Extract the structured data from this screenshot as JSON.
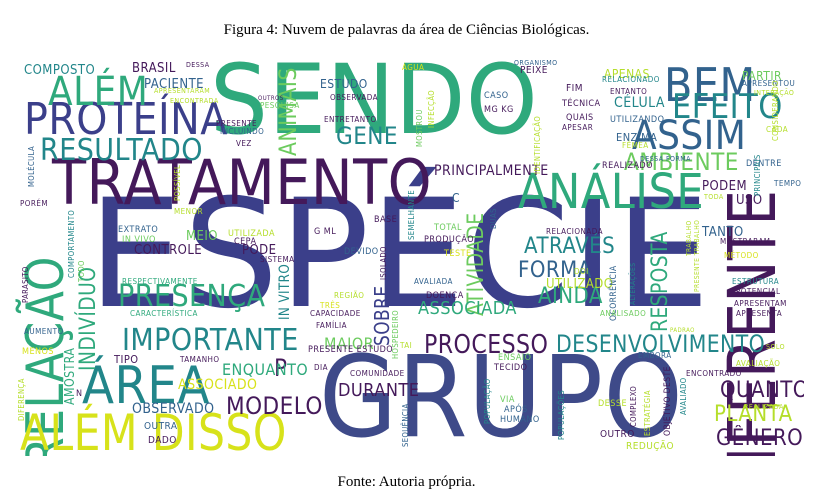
{
  "figure": {
    "caption": "Figura 4: Nuvem de palavras da área de Ciências Biológicas.",
    "source": "Fonte: Autoria própria."
  },
  "colors": {
    "dark_purple": "#44195a",
    "indigo": "#3b3f8a",
    "blue": "#32628d",
    "teal": "#22868a",
    "green": "#2fa97c",
    "light_green": "#6ccb5e",
    "yellow_green": "#b5de2b",
    "yellow": "#d7e21a"
  },
  "cloud": {
    "words": [
      {
        "text": "ESPÉCIE",
        "color": "#3b3f8a"
      },
      {
        "text": "GRUPO",
        "color": "#3e4a89"
      },
      {
        "text": "SENDO",
        "color": "#2fa97c"
      },
      {
        "text": "TRATAMENTO",
        "color": "#44195a"
      },
      {
        "text": "DIFERENTE",
        "color": "#44195a"
      },
      {
        "text": "ANÁLISE",
        "color": "#2fa97c"
      },
      {
        "text": "PROTEÍNA",
        "color": "#3b3f8a"
      },
      {
        "text": "BEM",
        "color": "#32628d"
      },
      {
        "text": "ASSIM",
        "color": "#32628d"
      },
      {
        "text": "EFEITO",
        "color": "#22868a"
      },
      {
        "text": "RESULTADO",
        "color": "#22868a"
      },
      {
        "text": "ALÉM",
        "color": "#2fa97c"
      },
      {
        "text": "RELAÇÃO",
        "color": "#2fa97c"
      },
      {
        "text": "ÁREA",
        "color": "#22868a"
      },
      {
        "text": "ALÉM DISSO",
        "color": "#d7e21a"
      },
      {
        "text": "IMPORTANTE",
        "color": "#22868a"
      },
      {
        "text": "DESENVOLVIMENTO",
        "color": "#22868a"
      },
      {
        "text": "PROCESSO",
        "color": "#44195a"
      },
      {
        "text": "PRESENÇA",
        "color": "#2fa97c"
      },
      {
        "text": "ANIMAIS",
        "color": "#6ccb5e"
      },
      {
        "text": "GENE",
        "color": "#22868a"
      },
      {
        "text": "AMBIENTE",
        "color": "#6ccb5e"
      },
      {
        "text": "MODELO",
        "color": "#44195a"
      },
      {
        "text": "QUANTO",
        "color": "#44195a"
      },
      {
        "text": "PLANTA",
        "color": "#b5de2b"
      },
      {
        "text": "GÊNERO",
        "color": "#44195a"
      },
      {
        "text": "ATRAVÉS",
        "color": "#22868a"
      },
      {
        "text": "FORMA",
        "color": "#32628d"
      },
      {
        "text": "AINDA",
        "color": "#2fa97c"
      },
      {
        "text": "INDIVÍDUO",
        "color": "#2fa97c"
      },
      {
        "text": "ATIVIDADE",
        "color": "#6ccb5e"
      },
      {
        "text": "RESPOSTA",
        "color": "#2fa97c"
      },
      {
        "text": "ASSOCIADA",
        "color": "#2fa97c"
      },
      {
        "text": "SOBRE",
        "color": "#3b3f8a"
      },
      {
        "text": "P",
        "color": "#44195a"
      },
      {
        "text": "MAIOR",
        "color": "#6ccb5e"
      },
      {
        "text": "ENQUANTO",
        "color": "#2fa97c"
      },
      {
        "text": "ASSOCIADO",
        "color": "#d7e21a"
      },
      {
        "text": "OBSERVADO",
        "color": "#32628d"
      },
      {
        "text": "DURANTE",
        "color": "#44195a"
      },
      {
        "text": "PRINCIPALMENTE",
        "color": "#44195a"
      },
      {
        "text": "COMPOSTO",
        "color": "#22868a"
      },
      {
        "text": "BRASIL",
        "color": "#44195a"
      },
      {
        "text": "PACIENTE",
        "color": "#32628d"
      },
      {
        "text": "ESTUDO",
        "color": "#32628d"
      },
      {
        "text": "APENAS",
        "color": "#b5de2b"
      },
      {
        "text": "PARTIR",
        "color": "#6ccb5e"
      },
      {
        "text": "CÉLULA",
        "color": "#22868a"
      },
      {
        "text": "ENZIMA",
        "color": "#32628d"
      },
      {
        "text": "PODEM",
        "color": "#44195a"
      },
      {
        "text": "USO",
        "color": "#44195a"
      },
      {
        "text": "TANTO",
        "color": "#32628d"
      },
      {
        "text": "CONTROLE",
        "color": "#44195a"
      },
      {
        "text": "MEIO",
        "color": "#6ccb5e"
      },
      {
        "text": "PODE",
        "color": "#44195a"
      },
      {
        "text": "IN VITRO",
        "color": "#22868a"
      },
      {
        "text": "UTILIZADO",
        "color": "#b5de2b"
      },
      {
        "text": "AMOSTRA",
        "color": "#2fa97c"
      },
      {
        "text": "TIPO",
        "color": "#44195a"
      },
      {
        "text": "PRESENTE ESTUDO",
        "color": "#44195a"
      },
      {
        "text": "COMUNIDADE",
        "color": "#44195a"
      },
      {
        "text": "VIA",
        "color": "#6ccb5e"
      },
      {
        "text": "APÓS",
        "color": "#32628d"
      },
      {
        "text": "HUMANO",
        "color": "#32628d"
      },
      {
        "text": "OUTRO",
        "color": "#44195a"
      },
      {
        "text": "REDUÇÃO",
        "color": "#b5de2b"
      },
      {
        "text": "DADO",
        "color": "#44195a"
      },
      {
        "text": "OUTRA",
        "color": "#32628d"
      },
      {
        "text": "TECIDO",
        "color": "#44195a"
      },
      {
        "text": "ENSAIO",
        "color": "#6ccb5e"
      },
      {
        "text": "EXTRATO",
        "color": "#32628d"
      },
      {
        "text": "IN VIVO",
        "color": "#6ccb5e"
      },
      {
        "text": "UTILIZADA",
        "color": "#b5de2b"
      },
      {
        "text": "CEPA",
        "color": "#44195a"
      },
      {
        "text": "FAMÍLIA",
        "color": "#44195a"
      },
      {
        "text": "CAPACIDADE",
        "color": "#44195a"
      },
      {
        "text": "REGIÃO",
        "color": "#b5de2b"
      },
      {
        "text": "TESTE",
        "color": "#d7e21a"
      },
      {
        "text": "DOENÇA",
        "color": "#44195a"
      },
      {
        "text": "AVALIADA",
        "color": "#32628d"
      },
      {
        "text": "PRODUÇÃO",
        "color": "#44195a"
      },
      {
        "text": "TOTAL",
        "color": "#6ccb5e"
      },
      {
        "text": "BASE",
        "color": "#44195a"
      },
      {
        "text": "DEVIDO",
        "color": "#32628d"
      },
      {
        "text": "G ML",
        "color": "#44195a"
      },
      {
        "text": "ISOLADO",
        "color": "#44195a"
      },
      {
        "text": "RELACIONADA",
        "color": "#44195a"
      },
      {
        "text": "CASO",
        "color": "#32628d"
      },
      {
        "text": "MG KG",
        "color": "#44195a"
      },
      {
        "text": "FIM",
        "color": "#44195a"
      },
      {
        "text": "PEIXE",
        "color": "#44195a"
      },
      {
        "text": "ORGANISMO",
        "color": "#32628d"
      },
      {
        "text": "QUAIS",
        "color": "#44195a"
      },
      {
        "text": "TÉCNICA",
        "color": "#44195a"
      },
      {
        "text": "APESAR",
        "color": "#44195a"
      },
      {
        "text": "ENTANTO",
        "color": "#44195a"
      },
      {
        "text": "UTILIZANDO",
        "color": "#32628d"
      },
      {
        "text": "RELACIONADO",
        "color": "#22868a"
      },
      {
        "text": "APRESENTOU",
        "color": "#32628d"
      },
      {
        "text": "INTERAÇÃO",
        "color": "#b5de2b"
      },
      {
        "text": "CADA",
        "color": "#b5de2b"
      },
      {
        "text": "CONSIDERANDO",
        "color": "#b5de2b"
      },
      {
        "text": "DENTRE",
        "color": "#32628d"
      },
      {
        "text": "TEMPO",
        "color": "#32628d"
      },
      {
        "text": "PRINCIPAIS",
        "color": "#22868a"
      },
      {
        "text": "FÊMEA",
        "color": "#b5de2b"
      },
      {
        "text": "REALIZADO",
        "color": "#44195a"
      },
      {
        "text": "DESSA FORMA",
        "color": "#32628d"
      },
      {
        "text": "MOSTRARAM",
        "color": "#44195a"
      },
      {
        "text": "MÉTODO",
        "color": "#d7e21a"
      },
      {
        "text": "ESTRUTURA",
        "color": "#22868a"
      },
      {
        "text": "POTENCIAL",
        "color": "#44195a"
      },
      {
        "text": "APRESENTAM",
        "color": "#44195a"
      },
      {
        "text": "APRESENTA",
        "color": "#44195a"
      },
      {
        "text": "ENCONTRADO",
        "color": "#44195a"
      },
      {
        "text": "AVALIAÇÃO",
        "color": "#b5de2b"
      },
      {
        "text": "REALIZADA",
        "color": "#b5de2b"
      },
      {
        "text": "SOLO",
        "color": "#b5de2b"
      },
      {
        "text": "EMBORA",
        "color": "#32628d"
      },
      {
        "text": "PADRÃO",
        "color": "#b5de2b"
      },
      {
        "text": "OCORRÊNCIA",
        "color": "#32628d"
      },
      {
        "text": "ALTERAÇÕES",
        "color": "#22868a"
      },
      {
        "text": "ESTRATÉGIA",
        "color": "#b5de2b"
      },
      {
        "text": "OBJETIVO DESTE",
        "color": "#44195a"
      },
      {
        "text": "AVALIADO",
        "color": "#22868a"
      },
      {
        "text": "COMPLEXO",
        "color": "#44195a"
      },
      {
        "text": "DESSE",
        "color": "#b5de2b"
      },
      {
        "text": "ANALISADO",
        "color": "#6ccb5e"
      },
      {
        "text": "DOI",
        "color": "#b5de2b"
      },
      {
        "text": "PARASITO",
        "color": "#44195a"
      },
      {
        "text": "AUMENTO",
        "color": "#32628d"
      },
      {
        "text": "MENOS",
        "color": "#d7e21a"
      },
      {
        "text": "CARACTERÍSTICA",
        "color": "#2fa97c"
      },
      {
        "text": "RESPECTIVAMENTE",
        "color": "#2fa97c"
      },
      {
        "text": "TAMANHO",
        "color": "#44195a"
      },
      {
        "text": "DIA",
        "color": "#44195a"
      },
      {
        "text": "TAI",
        "color": "#b5de2b"
      },
      {
        "text": "TRÊS",
        "color": "#d7e21a"
      },
      {
        "text": "SISTEMA",
        "color": "#44195a"
      },
      {
        "text": "POPULAÇÕES",
        "color": "#22868a"
      },
      {
        "text": "POPULAÇÃO",
        "color": "#22868a"
      },
      {
        "text": "SEQUÊNCIA",
        "color": "#32628d"
      },
      {
        "text": "HOSPEDEIRO",
        "color": "#6ccb5e"
      },
      {
        "text": "SEMELHANTE",
        "color": "#22868a"
      },
      {
        "text": "IDENTIFICAÇÃO",
        "color": "#b5de2b"
      },
      {
        "text": "MOSTROU",
        "color": "#6ccb5e"
      },
      {
        "text": "INFECÇÃO",
        "color": "#b5de2b"
      },
      {
        "text": "ÁGUA",
        "color": "#d7e21a"
      },
      {
        "text": "ENTRETANTO",
        "color": "#44195a"
      },
      {
        "text": "OBSERVADA",
        "color": "#44195a"
      },
      {
        "text": "PESQUISA",
        "color": "#6ccb5e"
      },
      {
        "text": "INCLUINDO",
        "color": "#32628d"
      },
      {
        "text": "PRESENTE",
        "color": "#44195a"
      },
      {
        "text": "VEZ",
        "color": "#44195a"
      },
      {
        "text": "ENCONTRADA",
        "color": "#b5de2b"
      },
      {
        "text": "APRESENTARAM",
        "color": "#b5de2b"
      },
      {
        "text": "DESSA",
        "color": "#44195a"
      },
      {
        "text": "MOLÉCULA",
        "color": "#32628d"
      },
      {
        "text": "OUTROS",
        "color": "#44195a"
      },
      {
        "text": "POSSÍVEL",
        "color": "#b5de2b"
      },
      {
        "text": "PORÉM",
        "color": "#44195a"
      },
      {
        "text": "COMPORTAMENTO",
        "color": "#22868a"
      },
      {
        "text": "TODO",
        "color": "#6ccb5e"
      },
      {
        "text": "MENOR",
        "color": "#b5de2b"
      },
      {
        "text": "DUAS",
        "color": "#32628d"
      },
      {
        "text": "C",
        "color": "#32628d"
      },
      {
        "text": "TODA",
        "color": "#b5de2b"
      },
      {
        "text": "TRABALHO",
        "color": "#b5de2b"
      },
      {
        "text": "PRESENTE TRABALHO",
        "color": "#b5de2b"
      },
      {
        "text": "N",
        "color": "#44195a"
      },
      {
        "text": "DIFERENÇA",
        "color": "#b5de2b"
      }
    ]
  }
}
